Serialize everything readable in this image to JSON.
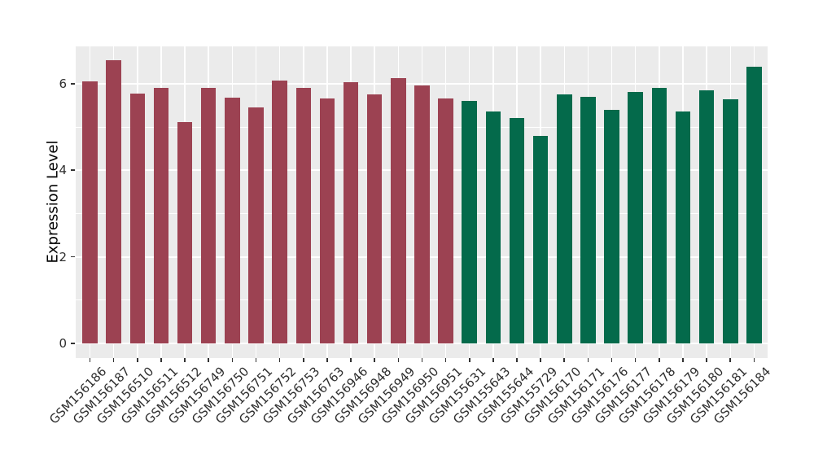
{
  "chart_data": {
    "type": "bar",
    "title": "",
    "xlabel": "",
    "ylabel": "Expression Level",
    "categories": [
      "GSM156186",
      "GSM156187",
      "GSM156510",
      "GSM156511",
      "GSM156512",
      "GSM156749",
      "GSM156750",
      "GSM156751",
      "GSM156752",
      "GSM156753",
      "GSM156763",
      "GSM156946",
      "GSM156948",
      "GSM156949",
      "GSM156950",
      "GSM156951",
      "GSM155631",
      "GSM155643",
      "GSM155644",
      "GSM155729",
      "GSM156170",
      "GSM156171",
      "GSM156176",
      "GSM156177",
      "GSM156178",
      "GSM156179",
      "GSM156180",
      "GSM156181",
      "GSM156184"
    ],
    "values": [
      6.06,
      6.55,
      5.78,
      5.91,
      5.11,
      5.91,
      5.68,
      5.46,
      6.07,
      5.9,
      5.66,
      6.04,
      5.75,
      6.13,
      5.96,
      5.66,
      5.61,
      5.36,
      5.21,
      4.79,
      5.75,
      5.69,
      5.39,
      5.8,
      5.9,
      5.35,
      5.85,
      5.64,
      6.4
    ],
    "bar_group_index": [
      0,
      0,
      0,
      0,
      0,
      0,
      0,
      0,
      0,
      0,
      0,
      0,
      0,
      0,
      0,
      0,
      1,
      1,
      1,
      1,
      1,
      1,
      1,
      1,
      1,
      1,
      1,
      1,
      1
    ],
    "group_palette": [
      "#9C4252",
      "#046A4B"
    ],
    "yticks": [
      0,
      2,
      4,
      6
    ],
    "yticks_minor": [
      1,
      3,
      5
    ],
    "ylim": [
      -0.33,
      6.86
    ],
    "grid": true,
    "legend_position": "none",
    "panel_background": "#EBEBEB",
    "gridline_color": "#FFFFFF"
  }
}
